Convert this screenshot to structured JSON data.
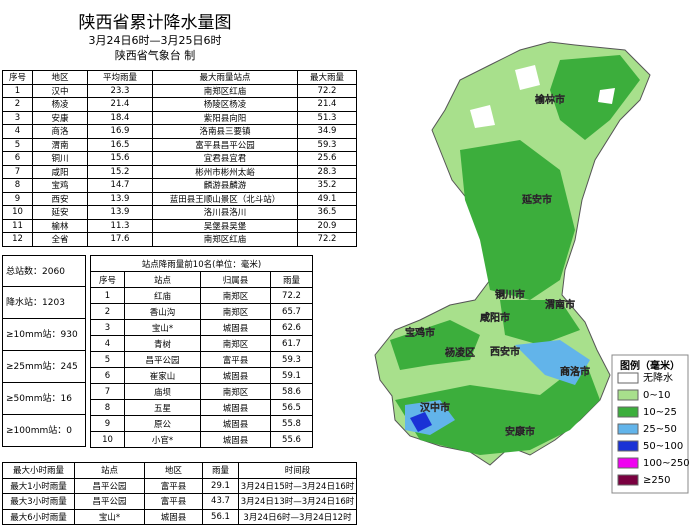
{
  "header": {
    "title": "陕西省累计降水量图",
    "subtitle": "3月24日6时—3月25日6时",
    "issuer": "陕西省气象台 制"
  },
  "region_table": {
    "headers": [
      "序号",
      "地区",
      "平均雨量",
      "最大雨量站点",
      "最大雨量"
    ],
    "rows": [
      [
        1,
        "汉中",
        23.3,
        "南郑区红庙",
        72.2
      ],
      [
        2,
        "杨凌",
        21.4,
        "杨陵区杨凌",
        21.4
      ],
      [
        3,
        "安康",
        18.4,
        "紫阳县向阳",
        51.3
      ],
      [
        4,
        "商洛",
        16.9,
        "洛南县三要镇",
        34.9
      ],
      [
        5,
        "渭南",
        16.5,
        "富平县昌平公园",
        59.3
      ],
      [
        6,
        "铜川",
        15.6,
        "宜君县宜君",
        25.6
      ],
      [
        7,
        "咸阳",
        15.2,
        "彬州市彬州太峪",
        28.3
      ],
      [
        8,
        "宝鸡",
        14.7,
        "麟游县麟游",
        35.2
      ],
      [
        9,
        "西安",
        13.9,
        "蓝田县王顺山景区（北斗站）",
        49.1
      ],
      [
        10,
        "延安",
        13.9,
        "洛川县洛川",
        36.5
      ],
      [
        11,
        "榆林",
        11.3,
        "吴堡县吴堡",
        20.9
      ],
      [
        12,
        "全省",
        17.6,
        "南郑区红庙",
        72.2
      ]
    ]
  },
  "stats": [
    {
      "label": "总站数：",
      "value": 2060
    },
    {
      "label": "降水站：",
      "value": 1203
    },
    {
      "label": "≥10mm站：",
      "value": 930
    },
    {
      "label": "≥25mm站：",
      "value": 245
    },
    {
      "label": "≥50mm站：",
      "value": 16
    },
    {
      "label": "≥100mm站：",
      "value": 0
    }
  ],
  "top10_table": {
    "title": "站点降雨量前10名(单位：毫米)",
    "headers": [
      "序号",
      "站点",
      "归属县",
      "雨量"
    ],
    "rows": [
      [
        1,
        "红庙",
        "南郑区",
        72.2
      ],
      [
        2,
        "香山沟",
        "南郑区",
        65.7
      ],
      [
        3,
        "宝山*",
        "城固县",
        62.6
      ],
      [
        4,
        "青树",
        "南郑区",
        61.7
      ],
      [
        5,
        "昌平公园",
        "富平县",
        59.3
      ],
      [
        6,
        "崔家山",
        "城固县",
        59.1
      ],
      [
        7,
        "庙坝",
        "南郑区",
        58.6
      ],
      [
        8,
        "五星",
        "城固县",
        56.5
      ],
      [
        9,
        "原公",
        "城固县",
        55.8
      ],
      [
        10,
        "小官*",
        "城固县",
        55.6
      ]
    ]
  },
  "hourly_table": {
    "headers": [
      "最大小时雨量",
      "站点",
      "地区",
      "雨量",
      "时间段"
    ],
    "rows": [
      [
        "最大1小时雨量",
        "昌平公园",
        "富平县",
        29.1,
        "3月24日15时—3月24日16时"
      ],
      [
        "最大3小时雨量",
        "昌平公园",
        "富平县",
        43.7,
        "3月24日13时—3月24日16时"
      ],
      [
        "最大6小时雨量",
        "宝山*",
        "城固县",
        56.1,
        "3月24日6时—3月24日12时"
      ]
    ]
  },
  "map": {
    "cities": [
      "榆林市",
      "延安市",
      "铜川市",
      "渭南市",
      "咸阳市",
      "宝鸡市",
      "杨凌区",
      "西安市",
      "商洛市",
      "汉中市",
      "安康市"
    ],
    "legend": {
      "title": "图例（毫米）",
      "items": [
        {
          "label": "无降水",
          "color": "#ffffff"
        },
        {
          "label": "0~10",
          "color": "#a8e08c"
        },
        {
          "label": "10~25",
          "color": "#3cae3c"
        },
        {
          "label": "25~50",
          "color": "#62b4ea"
        },
        {
          "label": "50~100",
          "color": "#1a32d6"
        },
        {
          "label": "100~250",
          "color": "#f000f0"
        },
        {
          "label": "≥250",
          "color": "#7a0040"
        }
      ]
    }
  }
}
